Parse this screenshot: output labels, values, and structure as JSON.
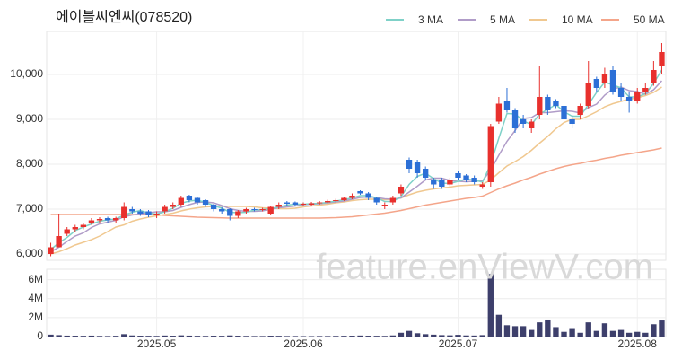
{
  "chart_data": {
    "type": "candlestick",
    "title": "에이블씨엔씨(078520)",
    "watermark": "feature.enViewV.com",
    "legend": "top-right",
    "grid": true,
    "up_color": "#e8302d",
    "down_color": "#2c6fd6",
    "categories": [
      null,
      null,
      null,
      null,
      null,
      null,
      null,
      null,
      null,
      null,
      null,
      null,
      null,
      "2025.05",
      null,
      null,
      null,
      null,
      null,
      null,
      null,
      null,
      null,
      null,
      null,
      null,
      null,
      null,
      null,
      null,
      null,
      "2025.06",
      null,
      null,
      null,
      null,
      null,
      null,
      null,
      null,
      null,
      null,
      null,
      null,
      null,
      null,
      null,
      null,
      null,
      null,
      "2025.07",
      null,
      null,
      null,
      null,
      null,
      null,
      null,
      null,
      null,
      null,
      null,
      null,
      null,
      null,
      null,
      null,
      null,
      null,
      null,
      null,
      null,
      "2025.08",
      null,
      null,
      null
    ],
    "open": [
      6000,
      6150,
      6450,
      6550,
      6600,
      6700,
      6750,
      6800,
      6750,
      6800,
      7000,
      6950,
      6950,
      6880,
      6950,
      7050,
      7100,
      7300,
      7250,
      7200,
      7100,
      7000,
      7000,
      6850,
      6950,
      7000,
      6980,
      6900,
      7050,
      7150,
      7150,
      7100,
      7100,
      7130,
      7150,
      7180,
      7200,
      7250,
      7400,
      7350,
      7250,
      7100,
      7150,
      7350,
      8100,
      8050,
      7900,
      7650,
      7650,
      7550,
      7800,
      7750,
      7700,
      7500,
      7600,
      8950,
      9400,
      9200,
      9000,
      8800,
      9100,
      9500,
      9400,
      9300,
      9000,
      9100,
      9300,
      9900,
      9800,
      10100,
      9700,
      9500,
      9400,
      9600,
      9800,
      10200
    ],
    "high": [
      6250,
      6900,
      6600,
      6650,
      6700,
      6800,
      6820,
      6830,
      6830,
      7150,
      7050,
      7000,
      6980,
      6950,
      7100,
      7150,
      7300,
      7320,
      7280,
      7220,
      7120,
      7050,
      7020,
      6980,
      7030,
      7030,
      7030,
      7080,
      7150,
      7180,
      7170,
      7150,
      7160,
      7180,
      7210,
      7230,
      7280,
      7350,
      7420,
      7380,
      7270,
      7150,
      7300,
      7550,
      8150,
      8100,
      7950,
      7700,
      7700,
      7700,
      7850,
      7780,
      7750,
      7600,
      8900,
      9500,
      9700,
      9250,
      9100,
      9000,
      10200,
      9550,
      9450,
      9350,
      9100,
      9350,
      10300,
      9950,
      10150,
      10200,
      9800,
      9600,
      9700,
      9800,
      10300,
      10700
    ],
    "low": [
      5950,
      6150,
      6400,
      6500,
      6550,
      6650,
      6700,
      6700,
      6700,
      6750,
      6900,
      6850,
      6820,
      6800,
      6900,
      7000,
      7050,
      7150,
      7100,
      7050,
      6950,
      6900,
      6750,
      6800,
      6900,
      6950,
      6950,
      6880,
      7000,
      7080,
      7080,
      7080,
      7080,
      7100,
      7130,
      7150,
      7180,
      7220,
      7320,
      7200,
      7100,
      7000,
      7100,
      7300,
      7800,
      7700,
      7650,
      7450,
      7450,
      7500,
      7650,
      7600,
      7550,
      7450,
      7500,
      8900,
      9150,
      8700,
      8800,
      8700,
      9000,
      9100,
      9250,
      8600,
      8800,
      9000,
      9250,
      9600,
      9700,
      9550,
      9400,
      9150,
      9350,
      9550,
      9750,
      10000
    ],
    "close": [
      6150,
      6400,
      6550,
      6600,
      6650,
      6750,
      6780,
      6750,
      6800,
      7050,
      6950,
      6900,
      6880,
      6900,
      7050,
      7100,
      7250,
      7200,
      7150,
      7100,
      7000,
      6950,
      6850,
      6950,
      7000,
      6980,
      7000,
      7050,
      7100,
      7120,
      7100,
      7120,
      7130,
      7150,
      7180,
      7200,
      7250,
      7300,
      7350,
      7250,
      7150,
      7100,
      7250,
      7500,
      7900,
      7800,
      7700,
      7550,
      7500,
      7650,
      7700,
      7650,
      7600,
      7550,
      8850,
      9350,
      9200,
      8800,
      8900,
      8950,
      9500,
      9200,
      9300,
      9000,
      8900,
      9300,
      9800,
      9700,
      10000,
      9600,
      9500,
      9400,
      9600,
      9700,
      10100,
      10500
    ],
    "series": [
      {
        "name": "3 MA",
        "color": "#7fd1c8",
        "values": [
          6100,
          6250,
          6370,
          6520,
          6600,
          6670,
          6730,
          6760,
          6780,
          6870,
          6930,
          6970,
          6910,
          6890,
          6940,
          7020,
          7130,
          7180,
          7200,
          7150,
          7080,
          7020,
          6930,
          6920,
          6930,
          6980,
          6990,
          7010,
          7050,
          7090,
          7110,
          7110,
          7120,
          7130,
          7150,
          7180,
          7210,
          7250,
          7300,
          7300,
          7250,
          7170,
          7170,
          7280,
          7550,
          7730,
          7800,
          7680,
          7580,
          7570,
          7620,
          7670,
          7650,
          7600,
          8000,
          8580,
          9130,
          9120,
          8970,
          8880,
          9120,
          9220,
          9330,
          9170,
          9070,
          9070,
          9330,
          9600,
          9830,
          9770,
          9700,
          9500,
          9500,
          9570,
          9800,
          10100
        ]
      },
      {
        "name": "5 MA",
        "color": "#b09cc8",
        "values": [
          6050,
          6150,
          6280,
          6400,
          6470,
          6590,
          6670,
          6710,
          6750,
          6830,
          6870,
          6890,
          6920,
          6940,
          6940,
          6970,
          7040,
          7100,
          7150,
          7160,
          7140,
          7080,
          7010,
          6970,
          6950,
          6950,
          6960,
          7000,
          7030,
          7050,
          7070,
          7100,
          7110,
          7120,
          7140,
          7160,
          7180,
          7220,
          7260,
          7270,
          7260,
          7230,
          7220,
          7250,
          7380,
          7510,
          7650,
          7690,
          7690,
          7640,
          7620,
          7610,
          7620,
          7630,
          7870,
          8200,
          8510,
          8750,
          9020,
          9040,
          9150,
          9150,
          9170,
          9190,
          9180,
          9140,
          9260,
          9340,
          9540,
          9680,
          9720,
          9640,
          9620,
          9560,
          9660,
          9860
        ]
      },
      {
        "name": "10 MA",
        "color": "#f0c890",
        "values": [
          6000,
          6050,
          6120,
          6200,
          6260,
          6320,
          6400,
          6500,
          6600,
          6650,
          6730,
          6780,
          6820,
          6850,
          6880,
          6910,
          6960,
          7000,
          7030,
          7050,
          7060,
          7070,
          7060,
          7060,
          7060,
          7050,
          7030,
          7020,
          7010,
          7010,
          7020,
          7050,
          7070,
          7090,
          7110,
          7140,
          7160,
          7190,
          7210,
          7220,
          7220,
          7210,
          7220,
          7250,
          7320,
          7380,
          7420,
          7450,
          7470,
          7490,
          7520,
          7530,
          7540,
          7550,
          7650,
          7810,
          7960,
          8060,
          8170,
          8310,
          8470,
          8620,
          8790,
          8930,
          9000,
          9000,
          9080,
          9170,
          9280,
          9350,
          9400,
          9450,
          9480,
          9530,
          9600,
          9720
        ]
      },
      {
        "name": "50 MA",
        "color": "#f4a58a",
        "values": [
          6880,
          6880,
          6880,
          6880,
          6880,
          6880,
          6880,
          6880,
          6880,
          6880,
          6880,
          6880,
          6880,
          6870,
          6860,
          6850,
          6840,
          6830,
          6820,
          6815,
          6810,
          6805,
          6800,
          6800,
          6800,
          6800,
          6800,
          6800,
          6800,
          6800,
          6800,
          6800,
          6800,
          6800,
          6805,
          6810,
          6820,
          6830,
          6850,
          6870,
          6890,
          6910,
          6940,
          6970,
          7010,
          7050,
          7090,
          7120,
          7150,
          7180,
          7210,
          7240,
          7260,
          7290,
          7370,
          7450,
          7520,
          7580,
          7650,
          7710,
          7780,
          7840,
          7900,
          7950,
          7990,
          8020,
          8060,
          8090,
          8130,
          8160,
          8200,
          8230,
          8260,
          8290,
          8320,
          8360
        ]
      }
    ],
    "ylim": [
      5860,
      10960
    ],
    "yticks": [
      {
        "value": 6000,
        "label": "6,000"
      },
      {
        "value": 7000,
        "label": "7,000"
      },
      {
        "value": 8000,
        "label": "8,000"
      },
      {
        "value": 9000,
        "label": "9,000"
      },
      {
        "value": 10000,
        "label": "10,000"
      }
    ],
    "volume": {
      "color": "#3d3f6b",
      "values": [
        200000,
        150000,
        100000,
        90000,
        80000,
        100000,
        70000,
        60000,
        80000,
        250000,
        120000,
        90000,
        80000,
        70000,
        110000,
        90000,
        130000,
        100000,
        80000,
        70000,
        90000,
        80000,
        120000,
        90000,
        70000,
        60000,
        60000,
        90000,
        80000,
        60000,
        60000,
        50000,
        50000,
        60000,
        60000,
        70000,
        80000,
        90000,
        110000,
        90000,
        80000,
        70000,
        120000,
        400000,
        600000,
        350000,
        250000,
        200000,
        150000,
        130000,
        180000,
        120000,
        110000,
        150000,
        6600000,
        2300000,
        1200000,
        1100000,
        1100000,
        700000,
        1500000,
        1800000,
        1000000,
        500000,
        800000,
        400000,
        1500000,
        600000,
        1400000,
        600000,
        700000,
        400000,
        500000,
        400000,
        1300000,
        1700000
      ],
      "ylim": [
        0,
        7100000
      ],
      "yticks": [
        {
          "value": 0,
          "label": "0"
        },
        {
          "value": 2000000,
          "label": "2M"
        },
        {
          "value": 4000000,
          "label": "4M"
        },
        {
          "value": 6000000,
          "label": "6M"
        }
      ]
    }
  }
}
